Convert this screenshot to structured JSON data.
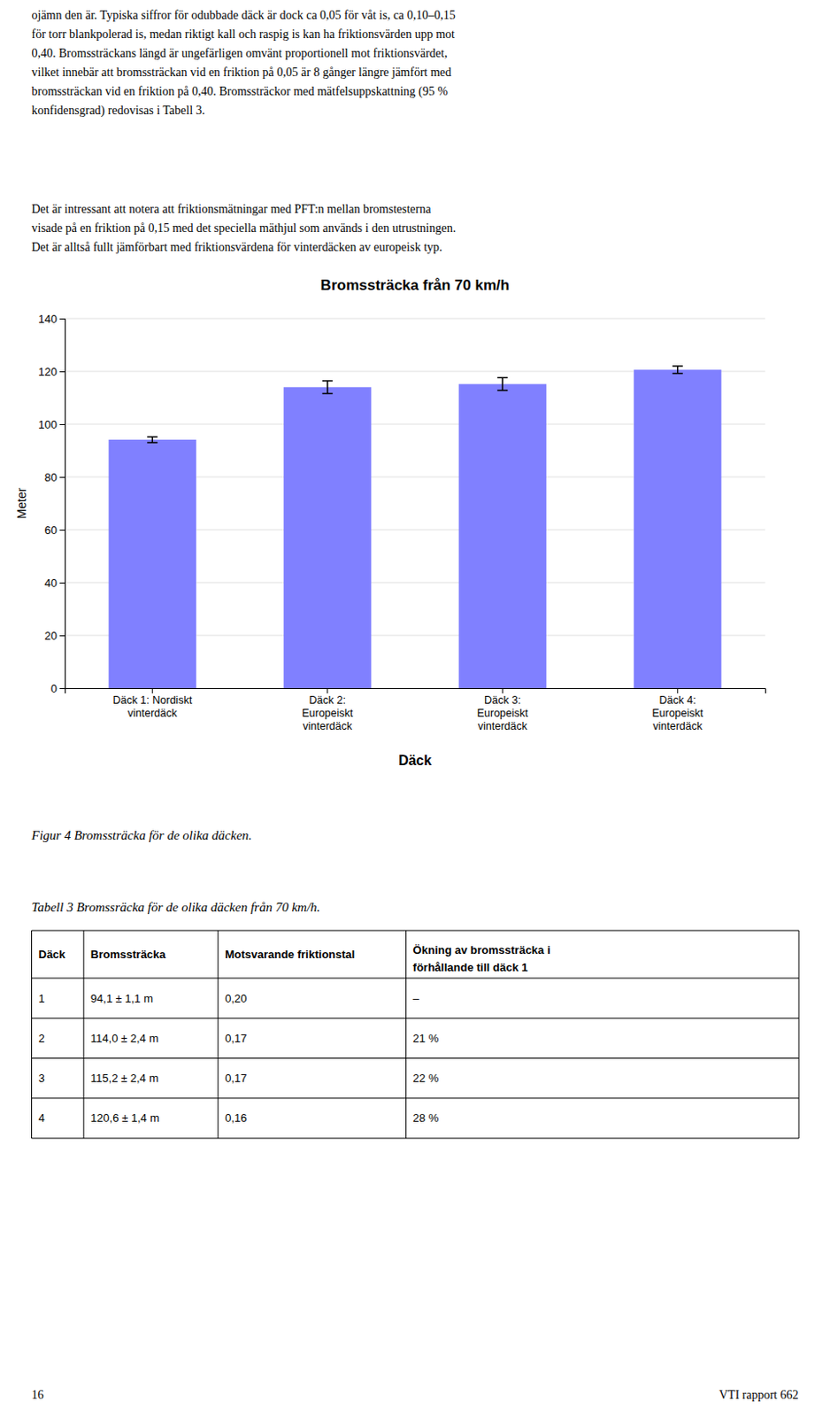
{
  "page_text_top": [
    "ojämn den är. Typiska siffror för odubbade däck är dock ca 0,05 för våt is, ca 0,10–0,15",
    "för torr blankpolerad is, medan riktigt kall och raspig is kan ha friktionsvärden upp mot",
    "0,40. Bromssträckans längd är ungefärligen omvänt proportionell mot friktionsvärdet,",
    "vilket innebär att bromssträckan vid en friktion på 0,05 är 8 gånger längre jämfört med",
    "bromssträckan vid en friktion på 0,40. Bromssträckor med mätfelsuppskattning (95 %",
    "konfidensgrad) redovisas i Tabell 3."
  ],
  "page_text_mid": [
    "Det är intressant att notera att friktionsmätningar med PFT:n mellan bromstesterna",
    "visade på en friktion på 0,15 med det speciella mäthjul som används i den utrustningen.",
    "Det är alltså fullt jämförbart med friktionsvärdena för vinterdäcken av europeisk typ."
  ],
  "chart_data": {
    "type": "bar",
    "title": "Bromssträcka från 70 km/h",
    "xlabel": "Däck",
    "ylabel": "Meter",
    "categories": [
      "Däck 1: Nordiskt\nvinterdäck",
      "Däck 2:\nEuropeiskt\nvinterdäck",
      "Däck 3:\nEuropeiskt\nvinterdäck",
      "Däck 4:\nEuropeiskt\nvinterdäck"
    ],
    "values": [
      94.1,
      114.0,
      115.2,
      120.6
    ],
    "errors": [
      1.1,
      2.4,
      2.4,
      1.4
    ],
    "color": "#8080FF",
    "ylim": [
      0,
      140
    ],
    "yticks": [
      0,
      20,
      40,
      60,
      80,
      100,
      120,
      140
    ],
    "grid": true
  },
  "figure_caption": "Figur 4  Bromssträcka för de olika däcken.",
  "table": {
    "caption": "Tabell 3  Bromssräcka för de olika däcken från 70 km/h.",
    "headers": [
      "Däck",
      "Bromssträcka",
      "Motsvarande friktionstal",
      "Ökning av bromssträcka i\nförhållande till däck 1"
    ],
    "rows": [
      [
        "1",
        "94,1 ± 1,1 m",
        "0,20",
        "–"
      ],
      [
        "2",
        "114,0 ± 2,4 m",
        "0,17",
        "21 %"
      ],
      [
        "3",
        "115,2 ± 2,4 m",
        "0,17",
        "22 %"
      ],
      [
        "4",
        "120,6 ± 1,4 m",
        "0,16",
        "28 %"
      ]
    ]
  },
  "footer_left": "16",
  "footer_right": "VTI rapport 662"
}
